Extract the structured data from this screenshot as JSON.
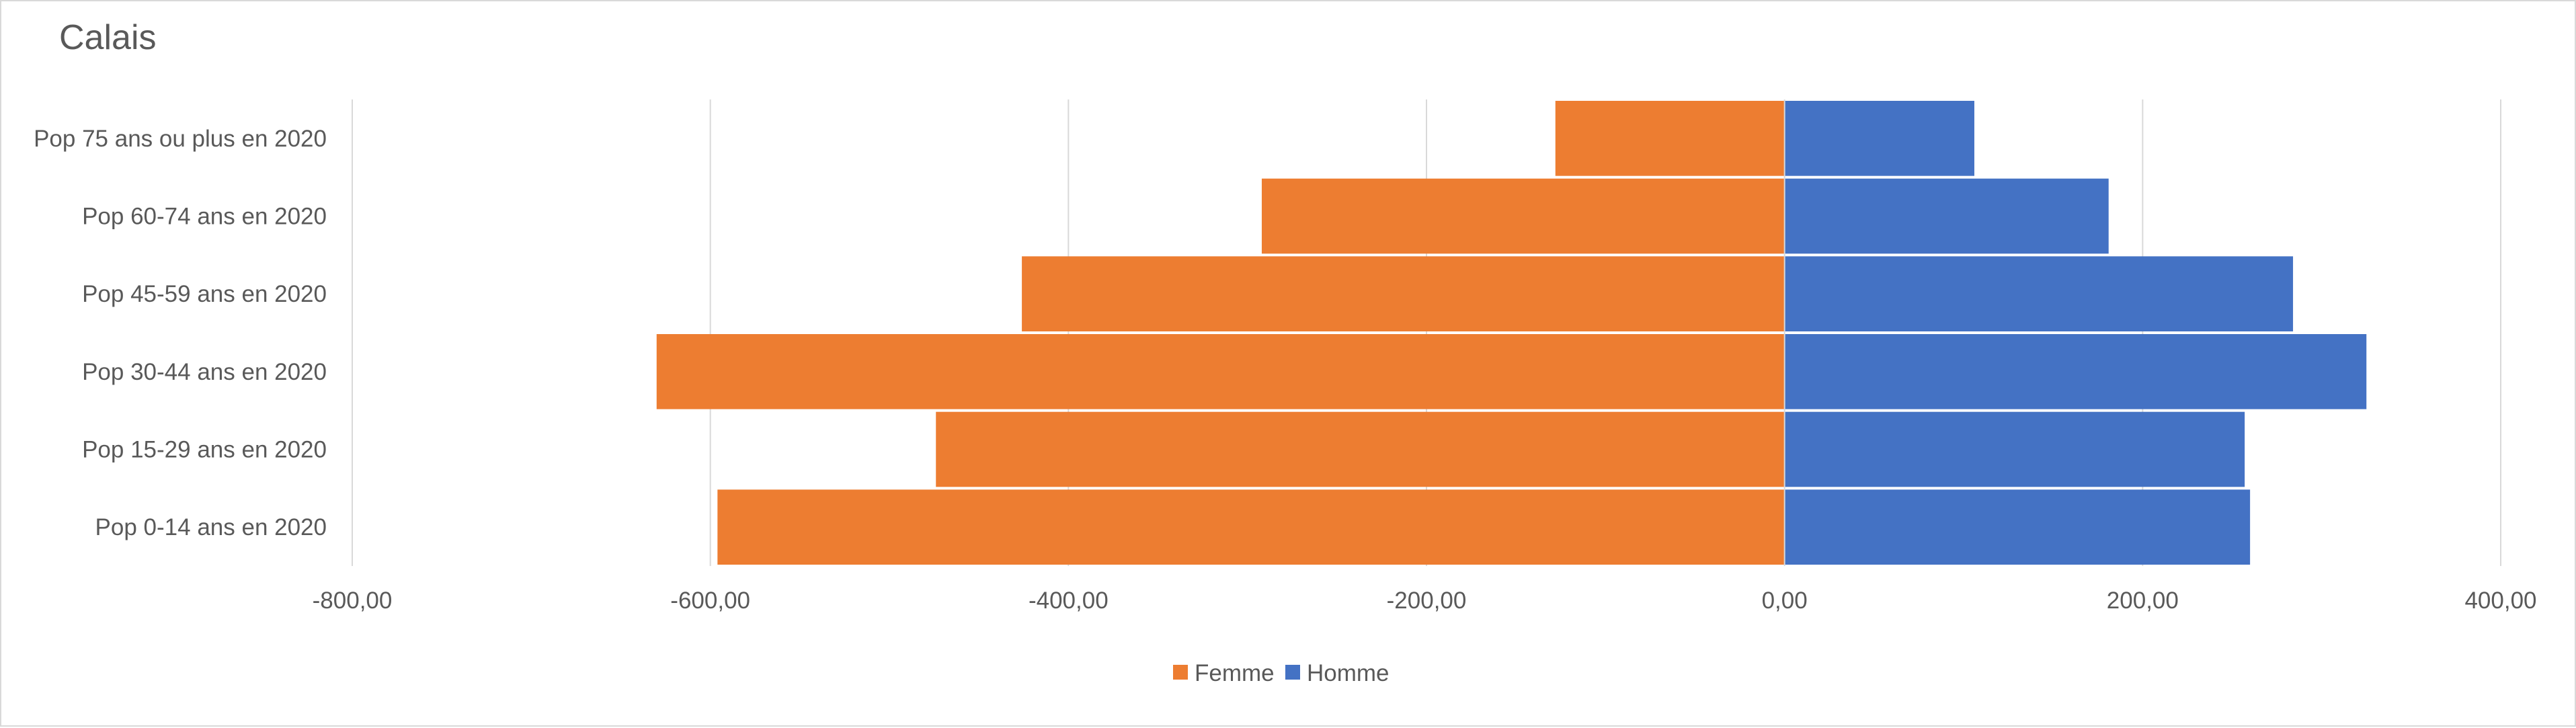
{
  "chart_data": {
    "type": "bar",
    "orientation": "horizontal",
    "title": "Calais",
    "xlabel": "",
    "ylabel": "",
    "categories": [
      "Pop 75 ans ou plus en 2020",
      "Pop 60-74 ans en 2020",
      "Pop 45-59 ans en 2020",
      "Pop 30-44 ans en 2020",
      "Pop 15-29 ans en 2020",
      "Pop 0-14 ans en 2020"
    ],
    "series": [
      {
        "name": "Femme",
        "color": "#ED7D31",
        "values": [
          -128,
          -292,
          -426,
          -630,
          -474,
          -596
        ]
      },
      {
        "name": "Homme",
        "color": "#4472C4",
        "values": [
          106,
          181,
          284,
          325,
          257,
          260
        ]
      }
    ],
    "xlim": [
      -800,
      400
    ],
    "x_ticks": [
      -800,
      -600,
      -400,
      -200,
      0,
      200,
      400
    ],
    "x_tick_labels": [
      "-800,00",
      "-600,00",
      "-400,00",
      "-200,00",
      "0,00",
      "200,00",
      "400,00"
    ],
    "grid": true,
    "legend_position": "bottom"
  }
}
